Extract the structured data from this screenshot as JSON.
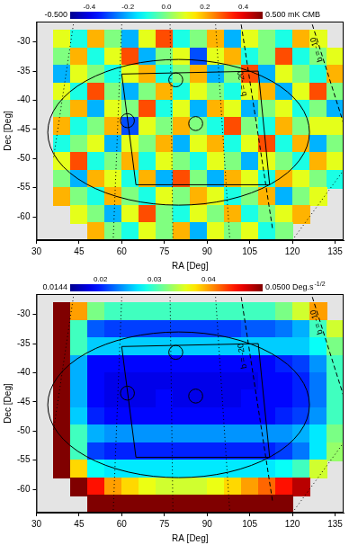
{
  "chart_data": [
    {
      "type": "heatmap",
      "x_label": "RA [Deg]",
      "y_label": "Dec [Deg]",
      "xlim": [
        30,
        138
      ],
      "ylim": [
        -64,
        -26.5
      ],
      "xticks": [
        30,
        45,
        60,
        75,
        90,
        105,
        120,
        135
      ],
      "yticks": [
        -30,
        -35,
        -40,
        -45,
        -50,
        -55,
        -60
      ],
      "grid": false,
      "cells": {
        "x": [
          39,
          45,
          51,
          57,
          63,
          69,
          75,
          81,
          87,
          93,
          99,
          105,
          111,
          117,
          123,
          129,
          135
        ],
        "y": [
          -29.5,
          -32.5,
          -35.5,
          -38.5,
          -41.5,
          -44.5,
          -47.5,
          -50.5,
          -53.5,
          -56.5,
          -59.5,
          -62.5
        ],
        "values": [
          [
            0.1,
            -0.1,
            0.2,
            0.0,
            -0.2,
            0.1,
            0.3,
            -0.1,
            0.0,
            0.2,
            -0.2,
            0.1,
            0.0,
            -0.1,
            0.2,
            0.1,
            null
          ],
          [
            0.0,
            0.2,
            -0.1,
            0.1,
            0.3,
            -0.2,
            0.0,
            0.1,
            -0.3,
            0.1,
            0.2,
            -0.1,
            0.0,
            0.3,
            -0.1,
            0.0,
            0.1
          ],
          [
            -0.2,
            0.1,
            0.0,
            -0.1,
            0.1,
            0.2,
            -0.1,
            0.0,
            0.2,
            -0.2,
            0.0,
            0.3,
            -0.2,
            0.1,
            0.0,
            -0.1,
            0.2
          ],
          [
            0.1,
            -0.1,
            0.3,
            0.0,
            -0.2,
            0.0,
            0.2,
            -0.1,
            0.1,
            0.0,
            -0.1,
            0.1,
            0.2,
            -0.2,
            0.1,
            0.3,
            0.0
          ],
          [
            0.0,
            0.2,
            -0.2,
            0.1,
            0.0,
            0.3,
            -0.1,
            0.1,
            -0.2,
            0.2,
            0.1,
            -0.2,
            0.0,
            0.1,
            -0.1,
            0.0,
            -0.2
          ],
          [
            0.2,
            -0.1,
            0.0,
            0.2,
            -0.3,
            0.1,
            0.0,
            0.2,
            0.0,
            -0.1,
            0.3,
            0.0,
            -0.1,
            0.2,
            0.0,
            0.1,
            0.1
          ],
          [
            -0.1,
            0.0,
            0.1,
            -0.2,
            0.1,
            0.0,
            0.2,
            -0.2,
            0.1,
            0.2,
            -0.1,
            0.1,
            0.3,
            -0.1,
            0.2,
            -0.2,
            0.0
          ],
          [
            0.1,
            0.3,
            -0.1,
            0.0,
            0.2,
            -0.1,
            0.1,
            0.0,
            -0.1,
            0.1,
            0.0,
            -0.2,
            0.1,
            0.0,
            -0.1,
            0.2,
            0.1
          ],
          [
            0.0,
            -0.2,
            0.2,
            0.1,
            -0.1,
            0.2,
            -0.2,
            0.3,
            0.0,
            -0.2,
            0.2,
            0.1,
            -0.1,
            0.2,
            0.1,
            0.0,
            -0.1
          ],
          [
            0.2,
            0.0,
            -0.1,
            0.2,
            0.0,
            -0.1,
            0.1,
            0.0,
            0.2,
            0.1,
            -0.1,
            0.0,
            0.2,
            -0.2,
            0.0,
            0.1,
            null
          ],
          [
            null,
            0.1,
            0.0,
            -0.2,
            0.1,
            0.3,
            0.0,
            -0.1,
            0.1,
            0.0,
            0.2,
            -0.1,
            0.0,
            0.1,
            0.2,
            null,
            null
          ],
          [
            null,
            null,
            0.2,
            0.0,
            -0.1,
            0.1,
            0.0,
            0.2,
            -0.2,
            0.1,
            0.0,
            0.1,
            -0.1,
            0.0,
            null,
            null,
            null
          ]
        ]
      },
      "colorbar": {
        "range": [
          -0.5,
          0.5
        ],
        "ticks": [
          {
            "value": -0.5,
            "label": "-0.500"
          },
          -0.4,
          -0.2,
          {
            "value": 0,
            "label": "0.0"
          },
          0.2,
          0.4,
          {
            "value": 0.5,
            "label": "0.500"
          }
        ],
        "unit": "mK CMB"
      },
      "circles": [
        {
          "ra": 79,
          "dec": -36.5,
          "radius": 1.2
        },
        {
          "ra": 62,
          "dec": -43.5,
          "radius": 1.2
        },
        {
          "ra": 86,
          "dec": -44,
          "radius": 1.2
        }
      ],
      "ellipse": {
        "center": [
          80,
          -45.5
        ],
        "semi_axes": [
          46,
          12.5
        ]
      },
      "polygon": [
        [
          60,
          -35.5
        ],
        [
          108,
          -35
        ],
        [
          112,
          -54.5
        ],
        [
          65,
          -54.5
        ]
      ],
      "lines": [
        {
          "label": "b = -20",
          "line_style": "dashed",
          "points": [
            [
              102,
              -27
            ],
            [
              113,
              -62
            ]
          ],
          "label_position": [
            104.5,
            -37
          ]
        },
        {
          "label": "b = -10",
          "line_style": "dashed",
          "points": [
            [
              127,
              -27
            ],
            [
              138,
              -44
            ]
          ],
          "label_position": [
            130.5,
            -31
          ]
        },
        {
          "line_style": "dotted",
          "points": [
            [
              43,
              -27
            ],
            [
              36,
              -50
            ]
          ]
        },
        {
          "line_style": "dotted",
          "points": [
            [
              60,
              -27
            ],
            [
              57,
              -64
            ]
          ]
        },
        {
          "line_style": "dotted",
          "points": [
            [
              77,
              -27
            ],
            [
              78,
              -64
            ]
          ]
        },
        {
          "line_style": "dotted",
          "points": [
            [
              93,
              -27
            ],
            [
              98,
              -64
            ]
          ]
        },
        {
          "line_style": "dotted",
          "points": [
            [
              120,
              -64
            ],
            [
              138,
              -52
            ]
          ]
        }
      ]
    },
    {
      "type": "heatmap",
      "x_label": "RA [Deg]",
      "y_label": "Dec [Deg]",
      "xlim": [
        30,
        138
      ],
      "ylim": [
        -64,
        -26.5
      ],
      "xticks": [
        30,
        45,
        60,
        75,
        90,
        105,
        120,
        135
      ],
      "yticks": [
        -30,
        -35,
        -40,
        -45,
        -50,
        -55,
        -60
      ],
      "grid": false,
      "cells": {
        "x": [
          39,
          45,
          51,
          57,
          63,
          69,
          75,
          81,
          87,
          93,
          99,
          105,
          111,
          117,
          123,
          129,
          135
        ],
        "y": [
          -29.5,
          -32.5,
          -35.5,
          -38.5,
          -41.5,
          -44.5,
          -47.5,
          -50.5,
          -53.5,
          -56.5,
          -59.5,
          -62.5
        ],
        "values": [
          [
            0.05,
            0.04,
            0.032,
            0.03,
            0.03,
            0.03,
            0.03,
            0.03,
            0.03,
            0.03,
            0.03,
            0.03,
            0.03,
            0.032,
            0.035,
            0.04,
            null
          ],
          [
            0.05,
            0.03,
            0.022,
            0.021,
            0.021,
            0.021,
            0.021,
            0.021,
            0.021,
            0.021,
            0.021,
            0.022,
            0.022,
            0.023,
            0.025,
            0.03,
            0.035
          ],
          [
            0.05,
            0.03,
            0.026,
            0.026,
            0.026,
            0.026,
            0.026,
            0.026,
            0.026,
            0.026,
            0.026,
            0.026,
            0.026,
            0.026,
            0.026,
            0.028,
            0.032
          ],
          [
            0.05,
            0.025,
            0.019,
            0.019,
            0.019,
            0.019,
            0.019,
            0.019,
            0.019,
            0.019,
            0.019,
            0.019,
            0.019,
            0.02,
            0.021,
            0.024,
            0.03
          ],
          [
            0.05,
            0.025,
            0.019,
            0.018,
            0.018,
            0.018,
            0.018,
            0.018,
            0.018,
            0.018,
            0.018,
            0.018,
            0.019,
            0.019,
            0.02,
            0.023,
            0.03
          ],
          [
            0.05,
            0.025,
            0.019,
            0.018,
            0.018,
            0.018,
            0.019,
            0.018,
            0.018,
            0.018,
            0.018,
            0.019,
            0.019,
            0.019,
            0.02,
            0.023,
            0.03
          ],
          [
            0.05,
            0.026,
            0.02,
            0.019,
            0.019,
            0.019,
            0.019,
            0.019,
            0.019,
            0.019,
            0.019,
            0.019,
            0.019,
            0.02,
            0.021,
            0.024,
            0.03
          ],
          [
            0.05,
            0.03,
            0.025,
            0.024,
            0.024,
            0.024,
            0.024,
            0.024,
            0.024,
            0.024,
            0.024,
            0.024,
            0.024,
            0.024,
            0.025,
            0.027,
            0.032
          ],
          [
            0.05,
            0.03,
            0.021,
            0.02,
            0.02,
            0.02,
            0.02,
            0.02,
            0.02,
            0.02,
            0.02,
            0.02,
            0.02,
            0.021,
            0.023,
            0.027,
            0.033
          ],
          [
            0.05,
            0.038,
            0.028,
            0.027,
            0.027,
            0.027,
            0.027,
            0.027,
            0.027,
            0.027,
            0.027,
            0.027,
            0.027,
            0.028,
            0.03,
            0.035,
            null
          ],
          [
            null,
            0.05,
            0.045,
            0.04,
            0.038,
            0.036,
            0.035,
            0.035,
            0.035,
            0.036,
            0.038,
            0.04,
            0.042,
            0.045,
            0.048,
            null,
            null
          ],
          [
            null,
            null,
            0.05,
            0.05,
            0.05,
            0.05,
            0.05,
            0.05,
            0.05,
            0.05,
            0.05,
            0.05,
            0.05,
            0.05,
            null,
            null,
            null
          ]
        ]
      },
      "colorbar": {
        "range": [
          0.0144,
          0.05
        ],
        "ticks": [
          0.0144,
          0.02,
          0.03,
          0.04,
          {
            "value": 0.05,
            "label": "0.0500"
          }
        ],
        "unit": "Deg.s",
        "unit_exponent": "-1/2"
      },
      "circles": [
        {
          "ra": 79,
          "dec": -36.5,
          "radius": 1.2
        },
        {
          "ra": 62,
          "dec": -43.5,
          "radius": 1.2
        },
        {
          "ra": 86,
          "dec": -44,
          "radius": 1.2
        }
      ],
      "ellipse": {
        "center": [
          80,
          -45.5
        ],
        "semi_axes": [
          46,
          12.5
        ]
      },
      "polygon": [
        [
          60,
          -35.5
        ],
        [
          108,
          -35
        ],
        [
          112,
          -54.5
        ],
        [
          65,
          -54.5
        ]
      ],
      "lines": [
        {
          "label": "b = -20",
          "line_style": "dashed",
          "points": [
            [
              102,
              -27
            ],
            [
              113,
              -62
            ]
          ],
          "label_position": [
            104.5,
            -37
          ]
        },
        {
          "label": "b = -10",
          "line_style": "dashed",
          "points": [
            [
              127,
              -27
            ],
            [
              138,
              -44
            ]
          ],
          "label_position": [
            130.5,
            -31
          ]
        },
        {
          "line_style": "dotted",
          "points": [
            [
              43,
              -27
            ],
            [
              36,
              -50
            ]
          ]
        },
        {
          "line_style": "dotted",
          "points": [
            [
              60,
              -27
            ],
            [
              57,
              -64
            ]
          ]
        },
        {
          "line_style": "dotted",
          "points": [
            [
              77,
              -27
            ],
            [
              78,
              -64
            ]
          ]
        },
        {
          "line_style": "dotted",
          "points": [
            [
              93,
              -27
            ],
            [
              98,
              -64
            ]
          ]
        },
        {
          "line_style": "dotted",
          "points": [
            [
              120,
              -64
            ],
            [
              138,
              -52
            ]
          ]
        }
      ]
    }
  ]
}
